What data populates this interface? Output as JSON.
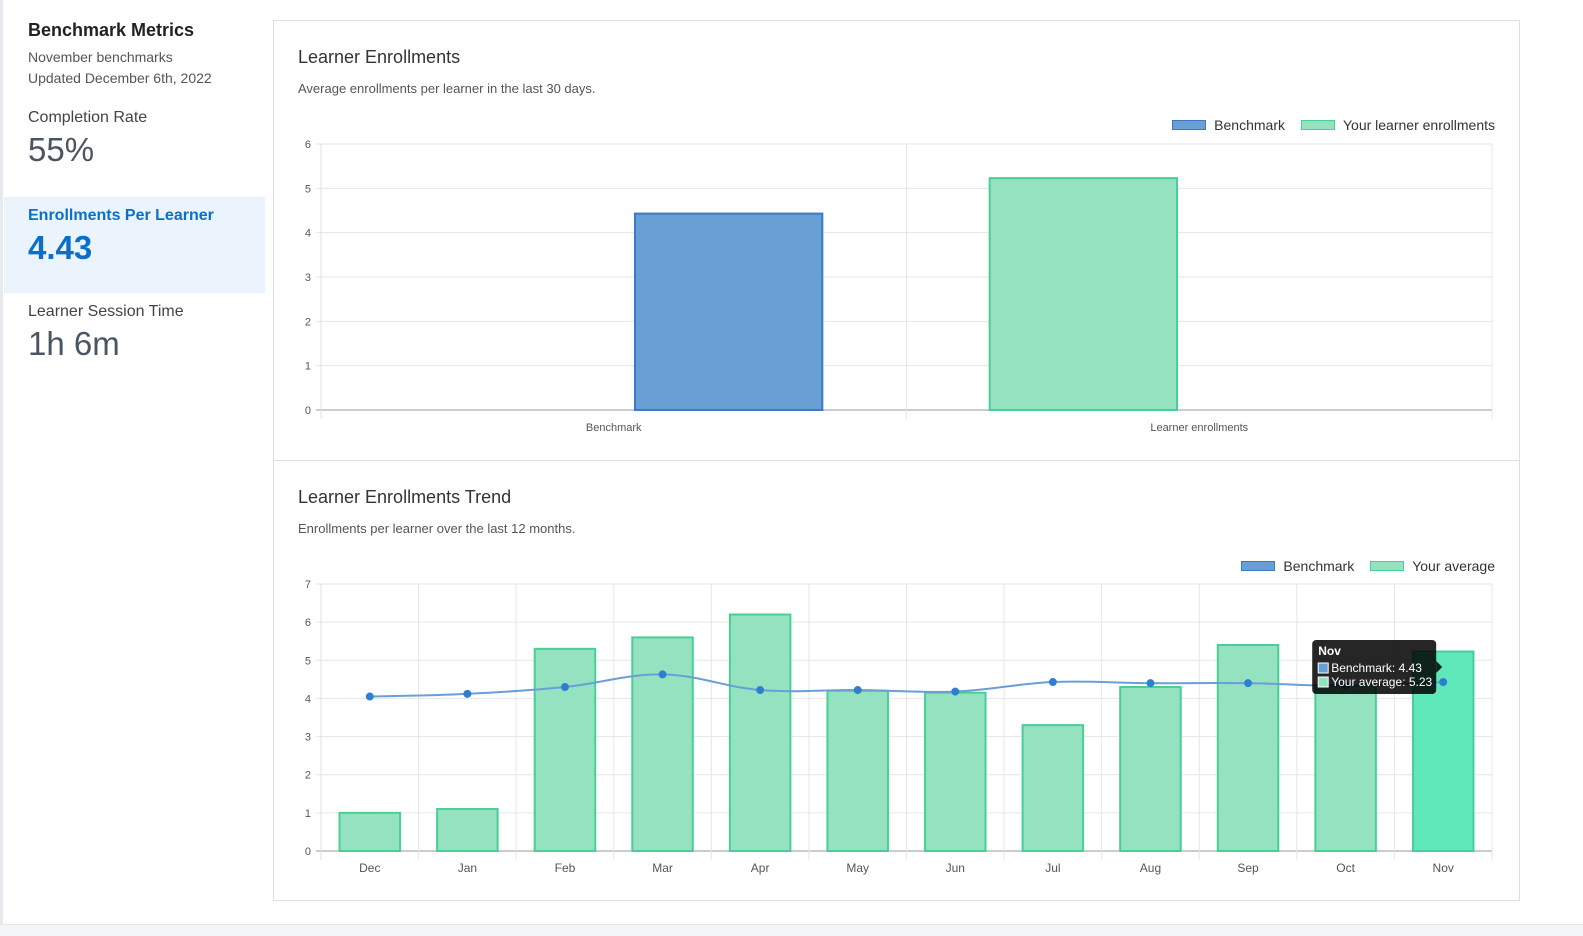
{
  "sidebar": {
    "title": "Benchmark Metrics",
    "subtitle": "November benchmarks",
    "updated": "Updated December 6th, 2022",
    "metrics": [
      {
        "label": "Completion Rate",
        "value": "55%"
      },
      {
        "label": "Enrollments Per Learner",
        "value": "4.43"
      },
      {
        "label": "Learner Session Time",
        "value": "1h 6m"
      }
    ]
  },
  "panels": {
    "enrollments": {
      "title": "Learner Enrollments",
      "description": "Average enrollments per learner in the last 30 days.",
      "legend": [
        "Benchmark",
        "Your learner enrollments"
      ]
    },
    "trend": {
      "title": "Learner Enrollments Trend",
      "description": "Enrollments per learner over the last 12 months.",
      "legend": [
        "Benchmark",
        "Your average"
      ],
      "tooltip": {
        "title": "Nov",
        "lines": [
          "Benchmark: 4.43",
          "Your average: 5.23"
        ]
      }
    }
  },
  "colors": {
    "benchmark_fill": "#6a9fd6",
    "benchmark_stroke": "#3a79c5",
    "yours_fill": "#94e2c0",
    "yours_stroke": "#47cf97",
    "yours_highlight_fill": "#5fe8b9",
    "line": "#6a9fd6",
    "point": "#2e7fd0",
    "accent": "#0a6fc9"
  },
  "chart_data": [
    {
      "type": "bar",
      "categories": [
        "Benchmark",
        "Learner enrollments"
      ],
      "values": [
        4.43,
        5.23
      ],
      "ylim": [
        0,
        6
      ],
      "yticks": [
        0,
        1,
        2,
        3,
        4,
        5,
        6
      ],
      "grid": true,
      "legend_position": "top-right"
    },
    {
      "type": "bar",
      "categories": [
        "Dec",
        "Jan",
        "Feb",
        "Mar",
        "Apr",
        "May",
        "Jun",
        "Jul",
        "Aug",
        "Sep",
        "Oct",
        "Nov"
      ],
      "series": [
        {
          "name": "Your average",
          "type": "bar",
          "values": [
            1.0,
            1.1,
            5.3,
            5.6,
            6.2,
            4.2,
            4.15,
            3.3,
            4.3,
            5.4,
            4.35,
            5.23
          ]
        },
        {
          "name": "Benchmark",
          "type": "line",
          "values": [
            4.05,
            4.12,
            4.3,
            4.63,
            4.22,
            4.22,
            4.18,
            4.43,
            4.4,
            4.4,
            4.33,
            4.43
          ]
        }
      ],
      "highlighted_category": "Nov",
      "ylim": [
        0,
        7
      ],
      "yticks": [
        0,
        1,
        2,
        3,
        4,
        5,
        6,
        7
      ],
      "grid": true,
      "legend_position": "top-right"
    }
  ]
}
